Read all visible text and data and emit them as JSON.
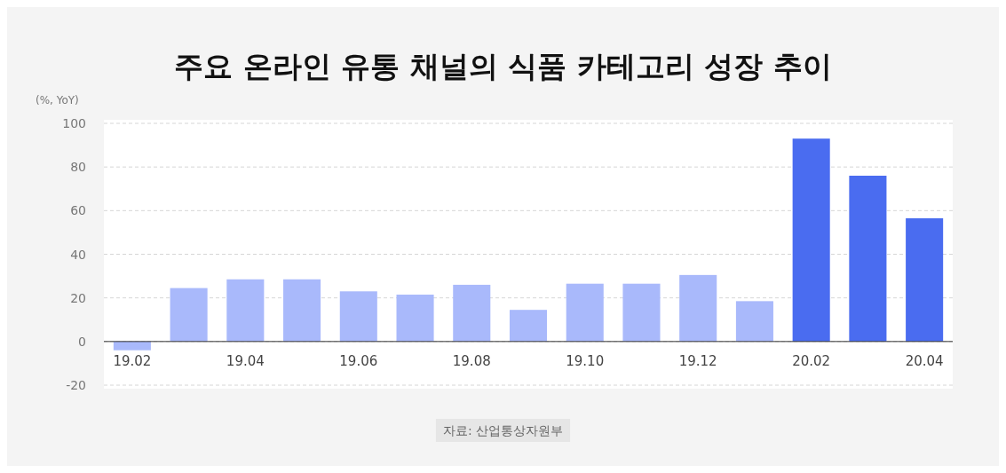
{
  "chart_data": {
    "type": "bar",
    "title": "주요 온라인 유통 채널의 식품 카테고리 성장 추이",
    "ylabel": "(%, YoY)",
    "categories": [
      "19.02",
      null,
      "19.04",
      null,
      "19.06",
      null,
      "19.08",
      null,
      "19.10",
      null,
      "19.12",
      null,
      "20.02",
      null,
      "20.04"
    ],
    "values": [
      -4,
      24.5,
      28.5,
      28.5,
      23,
      21.5,
      26,
      14.5,
      26.5,
      26.5,
      30.5,
      18.5,
      93,
      76,
      56.5
    ],
    "colors": [
      "#a9b9fb",
      "#a9b9fb",
      "#a9b9fb",
      "#a9b9fb",
      "#a9b9fb",
      "#a9b9fb",
      "#a9b9fb",
      "#a9b9fb",
      "#a9b9fb",
      "#a9b9fb",
      "#a9b9fb",
      "#a9b9fb",
      "#4a6cf0",
      "#4a6cf0",
      "#4a6cf0"
    ],
    "ylim": [
      -20,
      100
    ],
    "yticks": [
      -20,
      0,
      20,
      40,
      60,
      80,
      100
    ],
    "grid": "y",
    "annotations": [
      "자료: 산업통상자원부"
    ]
  }
}
